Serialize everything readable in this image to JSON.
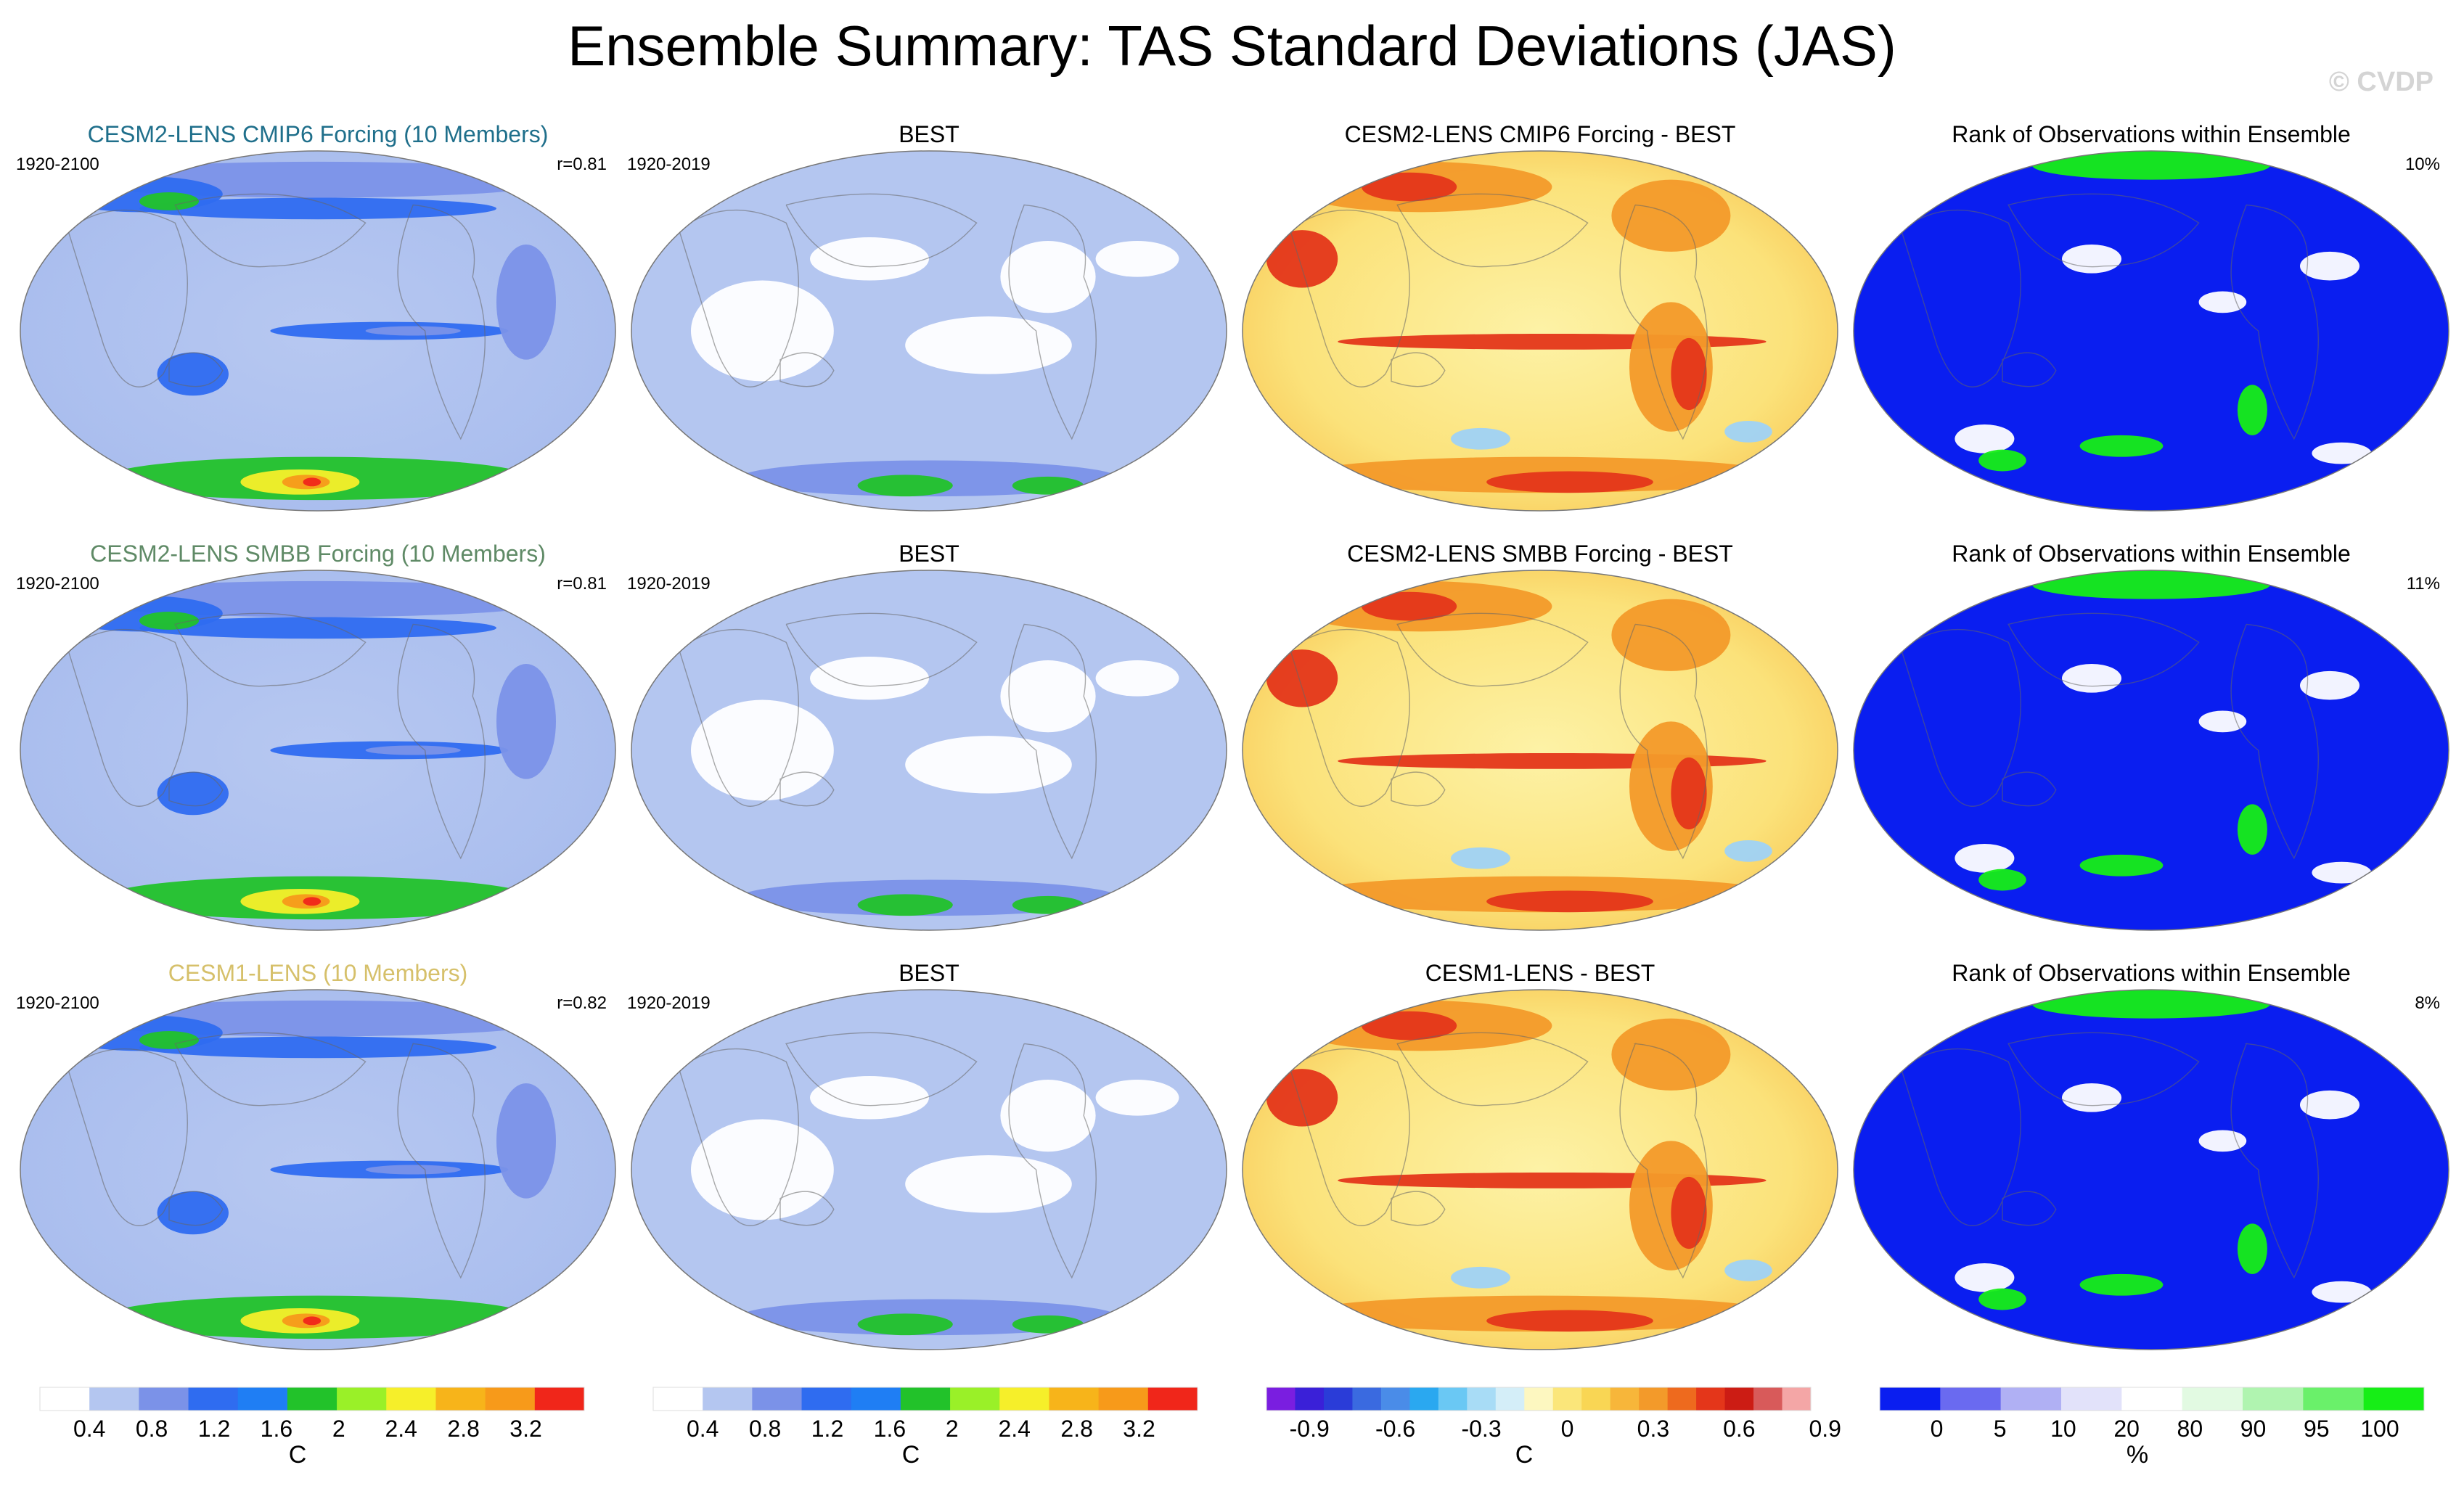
{
  "title": "Ensemble Summary: TAS Standard Deviations (JAS)",
  "copyright": "© CVDP",
  "colors": {
    "ocean_low": "#b4c6f0",
    "band_mid": "#7b92e8",
    "band_strong": "#2f6cf0",
    "green": "#22c22a",
    "yellow": "#f6ef2a",
    "orange": "#f79a1a",
    "red": "#f0261a",
    "diff_pale": "#fdf3a8",
    "diff_yellow": "#f9d654",
    "diff_orange": "#f39a2a",
    "diff_red": "#e4361a",
    "diff_blue": "#9fd2f5",
    "rank_blue": "#0a1ef0",
    "rank_green": "#16ee16"
  },
  "rows": [
    {
      "panels": [
        {
          "kind": "std",
          "title": "CESM2-LENS CMIP6 Forcing (10 Members)",
          "title_color": "#1f6f8b",
          "left_label": "1920-2100",
          "right_label": "r=0.81"
        },
        {
          "kind": "obs",
          "title": "BEST",
          "title_color": "#000000",
          "left_label": "1920-2019",
          "right_label": ""
        },
        {
          "kind": "diff",
          "title": "CESM2-LENS CMIP6 Forcing - BEST",
          "title_color": "#000000",
          "left_label": "",
          "right_label": ""
        },
        {
          "kind": "rank",
          "title": "Rank of Observations within Ensemble",
          "title_color": "#000000",
          "left_label": "",
          "right_label": "10%"
        }
      ]
    },
    {
      "panels": [
        {
          "kind": "std",
          "title": "CESM2-LENS SMBB Forcing (10 Members)",
          "title_color": "#5f8a66",
          "left_label": "1920-2100",
          "right_label": "r=0.81"
        },
        {
          "kind": "obs",
          "title": "BEST",
          "title_color": "#000000",
          "left_label": "1920-2019",
          "right_label": ""
        },
        {
          "kind": "diff",
          "title": "CESM2-LENS SMBB Forcing - BEST",
          "title_color": "#000000",
          "left_label": "",
          "right_label": ""
        },
        {
          "kind": "rank",
          "title": "Rank of Observations within Ensemble",
          "title_color": "#000000",
          "left_label": "",
          "right_label": "11%"
        }
      ]
    },
    {
      "panels": [
        {
          "kind": "std",
          "title": "CESM1-LENS (10 Members)",
          "title_color": "#d6c06a",
          "left_label": "1920-2100",
          "right_label": "r=0.82"
        },
        {
          "kind": "obs",
          "title": "BEST",
          "title_color": "#000000",
          "left_label": "1920-2019",
          "right_label": ""
        },
        {
          "kind": "diff",
          "title": "CESM1-LENS - BEST",
          "title_color": "#000000",
          "left_label": "",
          "right_label": ""
        },
        {
          "kind": "rank",
          "title": "Rank of Observations within Ensemble",
          "title_color": "#000000",
          "left_label": "",
          "right_label": "8%"
        }
      ]
    }
  ],
  "colorbars": [
    {
      "name": "std",
      "unit": "C",
      "colors": [
        "#ffffff",
        "#b4c6f0",
        "#7b92e8",
        "#2f6cf0",
        "#1f7ef4",
        "#22c22a",
        "#9af028",
        "#f6ef2a",
        "#f7b41a",
        "#f79a1a",
        "#f0261a"
      ],
      "ticks": [
        "0.4",
        "0.8",
        "1.2",
        "1.6",
        "2",
        "2.4",
        "2.8",
        "3.2"
      ]
    },
    {
      "name": "obs",
      "unit": "C",
      "colors": [
        "#ffffff",
        "#b4c6f0",
        "#7b92e8",
        "#2f6cf0",
        "#1f7ef4",
        "#22c22a",
        "#9af028",
        "#f6ef2a",
        "#f7b41a",
        "#f79a1a",
        "#f0261a"
      ],
      "ticks": [
        "0.4",
        "0.8",
        "1.2",
        "1.6",
        "2",
        "2.4",
        "2.8",
        "3.2"
      ]
    },
    {
      "name": "diff",
      "unit": "C",
      "colors": [
        "#7a1ee0",
        "#3a20d8",
        "#2a3cd8",
        "#3a6ae0",
        "#4a8ce8",
        "#2aa8f0",
        "#6ac8f4",
        "#a8dcf6",
        "#d4eef8",
        "#fdf7c0",
        "#fbe67a",
        "#f9d654",
        "#f7b63a",
        "#f39a2a",
        "#ee6a1e",
        "#e4361a",
        "#cc1c14",
        "#d85a5a",
        "#f4a6a6"
      ],
      "ticks": [
        "-0.9",
        "-0.6",
        "-0.3",
        "0",
        "0.3",
        "0.6",
        "0.9"
      ]
    },
    {
      "name": "rank",
      "unit": "%",
      "colors": [
        "#0a1ef0",
        "#6a6af0",
        "#b0b0f4",
        "#e2e2fa",
        "#ffffff",
        "#e2fae2",
        "#b0f4b0",
        "#6af06a",
        "#16ee16"
      ],
      "ticks": [
        "0",
        "5",
        "10",
        "20",
        "80",
        "90",
        "95",
        "100"
      ]
    }
  ]
}
